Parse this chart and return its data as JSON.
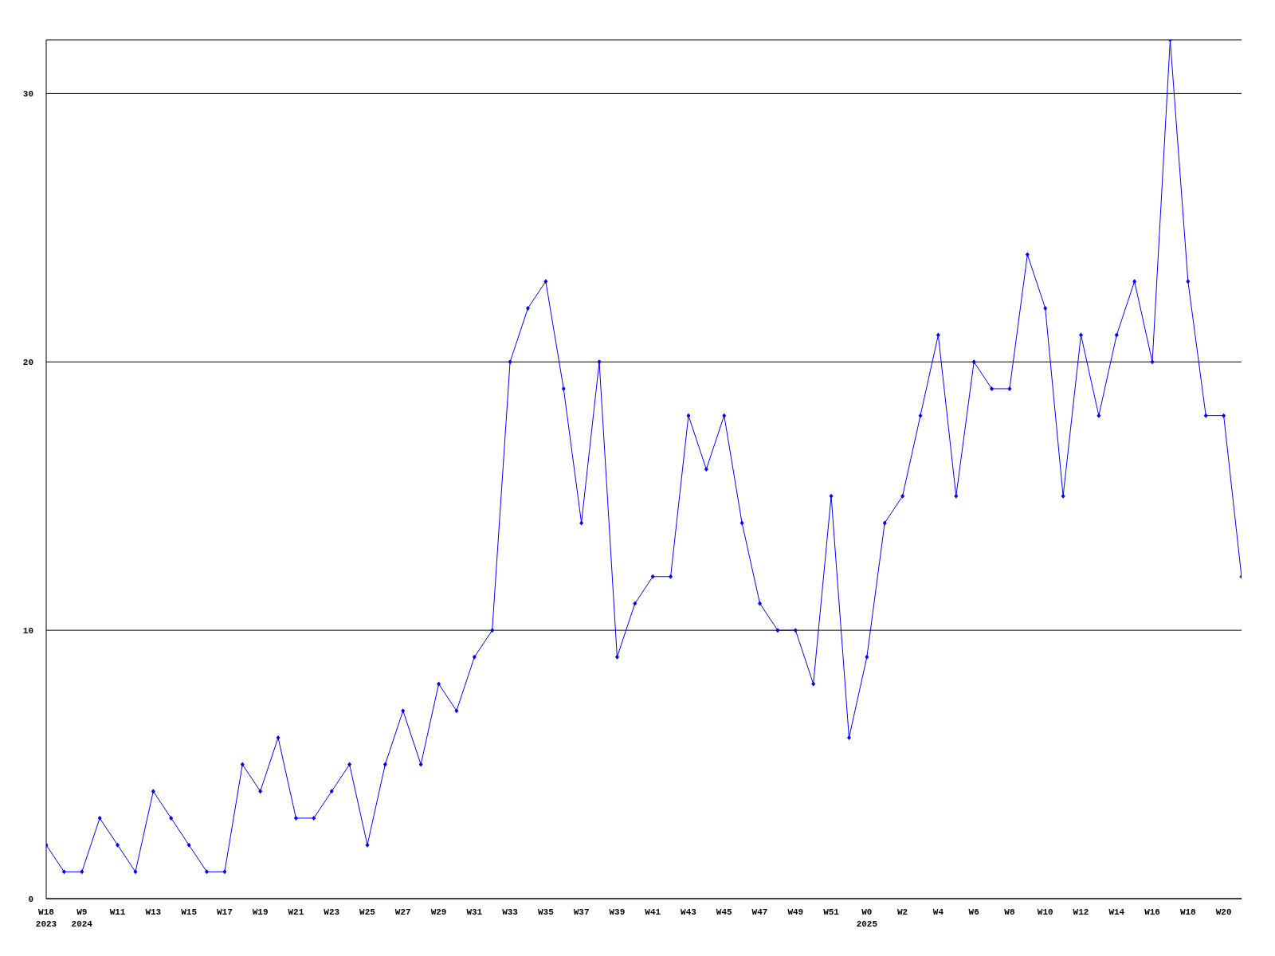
{
  "chart_data": {
    "type": "line",
    "categories": [
      "W18\n2023",
      null,
      "W9\n2024",
      null,
      "W11",
      null,
      "W13",
      null,
      "W15",
      null,
      "W17",
      null,
      "W19",
      null,
      "W21",
      null,
      "W23",
      null,
      "W25",
      null,
      "W27",
      null,
      "W29",
      null,
      "W31",
      null,
      "W33",
      null,
      "W35",
      null,
      "W37",
      null,
      "W39",
      null,
      "W41",
      null,
      "W43",
      null,
      "W45",
      null,
      "W47",
      null,
      "W49",
      null,
      "W51",
      null,
      "W0\n2025",
      null,
      "W2",
      null,
      "W4",
      null,
      "W6",
      null,
      "W8",
      null,
      "W10",
      null,
      "W12",
      null,
      "W14",
      null,
      "W16",
      null,
      "W18",
      null,
      "W20",
      null
    ],
    "series": [
      {
        "color": "#0000ff",
        "values": [
          2,
          1,
          1,
          3,
          2,
          1,
          4,
          3,
          2,
          1,
          1,
          5,
          4,
          6,
          3,
          3,
          4,
          5,
          2,
          5,
          7,
          5,
          8,
          7,
          9,
          10,
          20,
          22,
          23,
          19,
          14,
          20,
          9,
          11,
          12,
          12,
          18,
          16,
          18,
          14,
          11,
          10,
          10,
          8,
          15,
          6,
          9,
          14,
          15,
          18,
          21,
          15,
          20,
          19,
          19,
          24,
          22,
          15,
          21,
          18,
          21,
          23,
          20,
          32,
          23,
          18,
          18,
          12
        ]
      }
    ],
    "ylim": [
      0,
      32
    ],
    "yticks": [
      0,
      10,
      20,
      30
    ],
    "grid": "y",
    "marker": "diamond",
    "line_style": "solid"
  }
}
